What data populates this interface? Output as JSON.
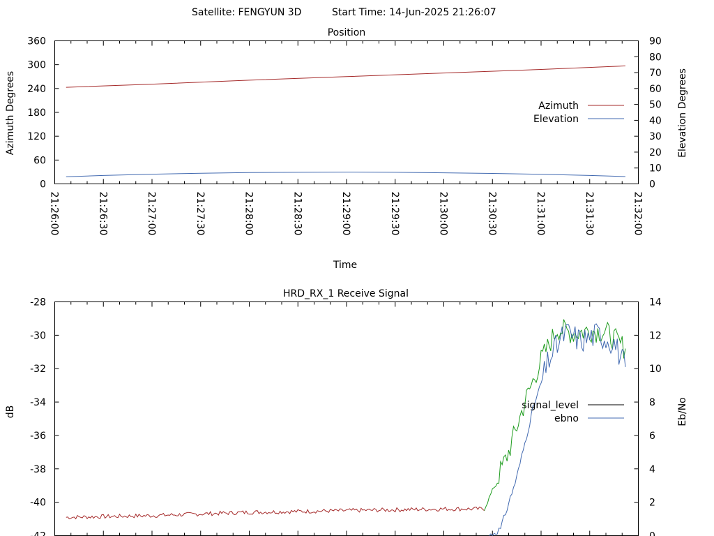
{
  "header": {
    "satellite_label": "Satellite: FENGYUN 3D",
    "start_time_label": "Start Time: 14-Jun-2025 21:26:07"
  },
  "chart_data": [
    {
      "type": "line",
      "title": "Position",
      "xlabel": "Time",
      "ylabel": "Azimuth Degrees",
      "y2label": "Elevation Degrees",
      "ylim": [
        0,
        360
      ],
      "y2lim": [
        0,
        90
      ],
      "yticks": [
        "0",
        "60",
        "120",
        "180",
        "240",
        "300",
        "360"
      ],
      "y2ticks": [
        "0",
        "10",
        "20",
        "30",
        "40",
        "50",
        "60",
        "70",
        "80",
        "90"
      ],
      "xlim": [
        "21:26:00",
        "21:32:00"
      ],
      "xticks": [
        "21:26:00",
        "21:26:30",
        "21:27:00",
        "21:27:30",
        "21:28:00",
        "21:28:30",
        "21:29:00",
        "21:29:30",
        "21:30:00",
        "21:30:30",
        "21:31:00",
        "21:31:30",
        "21:32:00"
      ],
      "legend_position": "right",
      "grid": false,
      "series": [
        {
          "name": "Azimuth",
          "axis": "y",
          "color": "#a52a2a",
          "x": [
            "21:26:07",
            "21:27:00",
            "21:28:00",
            "21:29:00",
            "21:30:00",
            "21:31:00",
            "21:31:52"
          ],
          "values": [
            243,
            251,
            261,
            270,
            279,
            288,
            297
          ]
        },
        {
          "name": "Elevation",
          "axis": "y2",
          "color": "#4169b0",
          "x": [
            "21:26:07",
            "21:26:30",
            "21:27:00",
            "21:27:30",
            "21:28:00",
            "21:28:30",
            "21:29:00",
            "21:29:30",
            "21:30:00",
            "21:30:30",
            "21:31:00",
            "21:31:30",
            "21:31:52"
          ],
          "values": [
            4.5,
            5.3,
            6.1,
            6.7,
            7.1,
            7.3,
            7.4,
            7.3,
            7.0,
            6.6,
            6.0,
            5.3,
            4.6
          ]
        }
      ]
    },
    {
      "type": "line",
      "title": "HRD_RX_1 Receive Signal",
      "ylabel": "dB",
      "y2label": "Eb/No",
      "ylim": [
        -42,
        -28
      ],
      "y2lim": [
        0,
        14
      ],
      "yticks": [
        "-42",
        "-40",
        "-38",
        "-36",
        "-34",
        "-32",
        "-30",
        "-28"
      ],
      "y2ticks": [
        "0",
        "2",
        "4",
        "6",
        "8",
        "10",
        "12",
        "14"
      ],
      "xlim": [
        "21:26:00",
        "21:32:00"
      ],
      "legend_position": "right",
      "grid": false,
      "series": [
        {
          "name": "signal_level",
          "axis": "y",
          "colors": {
            "low": "#a52a2a",
            "high": "#1e9c1e"
          },
          "x": [
            "21:26:07",
            "21:27:00",
            "21:28:00",
            "21:29:00",
            "21:30:00",
            "21:30:25",
            "21:30:30",
            "21:30:40",
            "21:30:50",
            "21:31:00",
            "21:31:10",
            "21:31:20",
            "21:31:30",
            "21:31:40",
            "21:31:52"
          ],
          "values": [
            -40.9,
            -40.8,
            -40.6,
            -40.5,
            -40.4,
            -40.4,
            -39.3,
            -37.0,
            -34.0,
            -31.5,
            -29.6,
            -29.9,
            -29.7,
            -29.8,
            -30.8
          ]
        },
        {
          "name": "ebno",
          "axis": "y2",
          "color": "#4169b0",
          "x": [
            "21:30:28",
            "21:30:35",
            "21:30:45",
            "21:30:55",
            "21:31:05",
            "21:31:15",
            "21:31:25",
            "21:31:35",
            "21:31:45",
            "21:31:52"
          ],
          "values": [
            0.0,
            0.4,
            3.5,
            7.6,
            10.6,
            12.2,
            11.7,
            12.1,
            11.6,
            10.1
          ]
        }
      ]
    }
  ]
}
